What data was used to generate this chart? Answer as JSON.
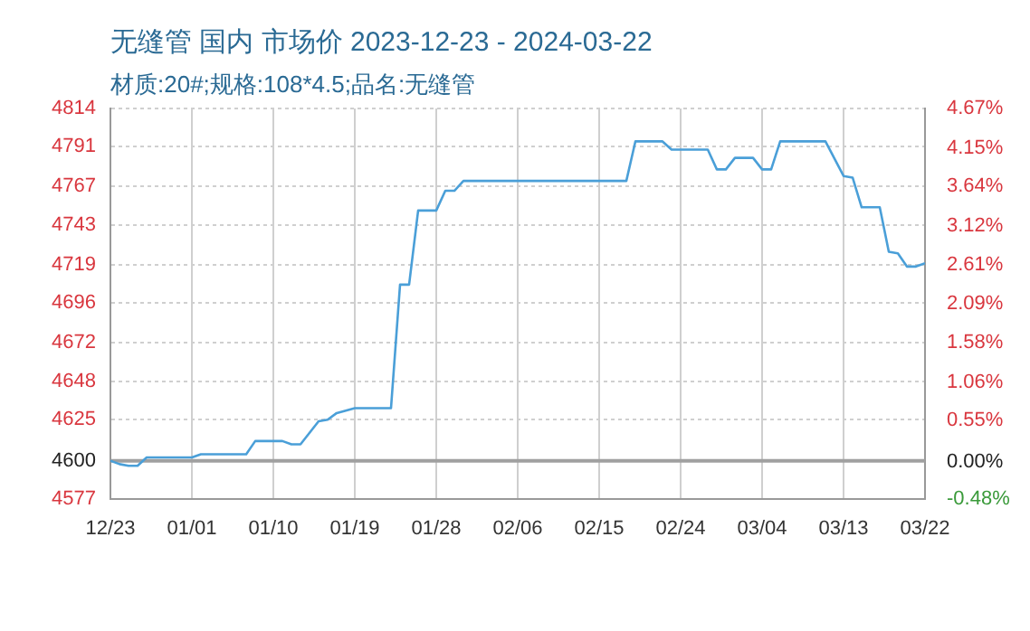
{
  "chart_data": {
    "type": "line",
    "title": "无缝管 国内 市场价 2023-12-23 - 2024-03-22",
    "subtitle": "材质:20#;规格:108*4.5;品名:无缝管",
    "x": [
      "2023-12-23",
      "2023-12-24",
      "2023-12-25",
      "2023-12-26",
      "2023-12-27",
      "2024-01-01",
      "2024-01-02",
      "2024-01-07",
      "2024-01-08",
      "2024-01-11",
      "2024-01-12",
      "2024-01-13",
      "2024-01-15",
      "2024-01-16",
      "2024-01-17",
      "2024-01-19",
      "2024-01-23",
      "2024-01-24",
      "2024-01-25",
      "2024-01-26",
      "2024-01-28",
      "2024-01-29",
      "2024-01-30",
      "2024-01-31",
      "2024-02-18",
      "2024-02-19",
      "2024-02-22",
      "2024-02-23",
      "2024-02-27",
      "2024-02-28",
      "2024-02-29",
      "2024-03-01",
      "2024-03-03",
      "2024-03-04",
      "2024-03-05",
      "2024-03-06",
      "2024-03-11",
      "2024-03-13",
      "2024-03-14",
      "2024-03-15",
      "2024-03-17",
      "2024-03-18",
      "2024-03-19",
      "2024-03-20",
      "2024-03-21",
      "2024-03-22"
    ],
    "series": [
      {
        "color": "#4a9fd8",
        "values": [
          4600,
          4598,
          4597,
          4597,
          4602,
          4602,
          4604,
          4604,
          4612,
          4612,
          4610,
          4610,
          4624,
          4625,
          4629,
          4632,
          4632,
          4707,
          4707,
          4752,
          4752,
          4764,
          4764,
          4770,
          4770,
          4794,
          4794,
          4789,
          4789,
          4777,
          4777,
          4784,
          4784,
          4777,
          4777,
          4794,
          4794,
          4773,
          4772,
          4754,
          4754,
          4727,
          4726,
          4718,
          4718,
          4720
        ]
      }
    ],
    "xlim": [
      "2023-12-23",
      "2024-03-22"
    ],
    "xticks": [
      {
        "value": "2023-12-23",
        "label": "12/23"
      },
      {
        "value": "2024-01-01",
        "label": "01/01"
      },
      {
        "value": "2024-01-10",
        "label": "01/10"
      },
      {
        "value": "2024-01-19",
        "label": "01/19"
      },
      {
        "value": "2024-01-28",
        "label": "01/28"
      },
      {
        "value": "2024-02-06",
        "label": "02/06"
      },
      {
        "value": "2024-02-15",
        "label": "02/15"
      },
      {
        "value": "2024-02-24",
        "label": "02/24"
      },
      {
        "value": "2024-03-04",
        "label": "03/04"
      },
      {
        "value": "2024-03-13",
        "label": "03/13"
      },
      {
        "value": "2024-03-22",
        "label": "03/22"
      }
    ],
    "ylim": [
      4577,
      4814
    ],
    "yticks": [
      4577,
      4600,
      4625,
      4648,
      4672,
      4696,
      4719,
      4743,
      4767,
      4791,
      4814
    ],
    "y2lim": [
      -0.48,
      4.67
    ],
    "y2ticks": [
      {
        "value": -0.48,
        "label": "-0.48%"
      },
      {
        "value": 0,
        "label": "0.00%"
      },
      {
        "value": 0.55,
        "label": "0.55%"
      },
      {
        "value": 1.06,
        "label": "1.06%"
      },
      {
        "value": 1.58,
        "label": "1.58%"
      },
      {
        "value": 2.09,
        "label": "2.09%"
      },
      {
        "value": 2.61,
        "label": "2.61%"
      },
      {
        "value": 3.12,
        "label": "3.12%"
      },
      {
        "value": 3.64,
        "label": "3.64%"
      },
      {
        "value": 4.15,
        "label": "4.15%"
      },
      {
        "value": 4.67,
        "label": "4.67%"
      }
    ],
    "ref_lines": [
      {
        "axis": "y",
        "value": 4600,
        "color": "#a0a0a0"
      }
    ],
    "grid": true,
    "legend": false,
    "marker": "none",
    "line_style": "solid"
  }
}
